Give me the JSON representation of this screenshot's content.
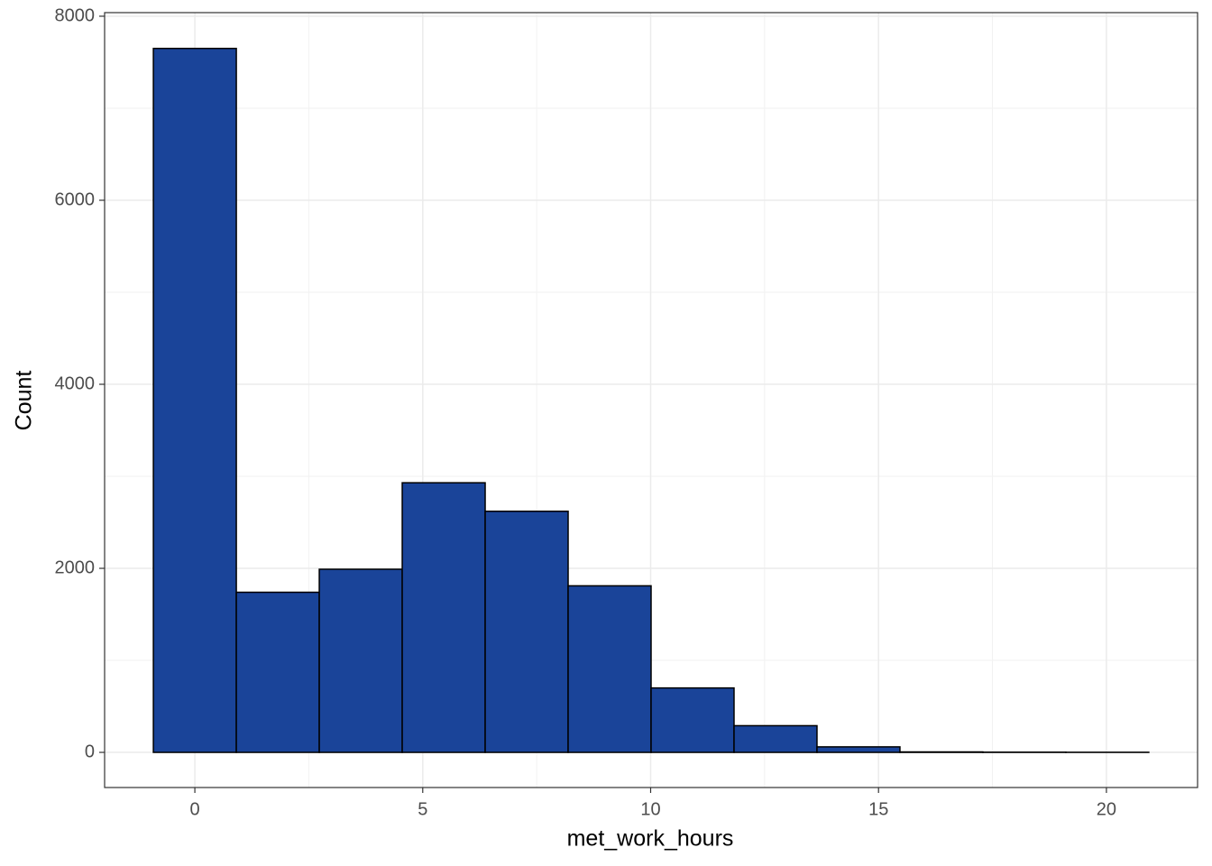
{
  "chart_data": {
    "type": "histogram",
    "x_label": "met_work_hours",
    "y_label": "Count",
    "bins": [
      -0.91,
      0.91,
      2.73,
      4.55,
      6.37,
      8.19,
      10.01,
      11.83,
      13.65,
      15.47,
      17.29,
      19.11,
      20.93
    ],
    "values": [
      7650,
      1740,
      1990,
      2930,
      2620,
      1810,
      700,
      290,
      60,
      5,
      2,
      1
    ],
    "color": "#1a4499",
    "xlim": [
      -1.98,
      22.0
    ],
    "ylim": [
      -382,
      8039
    ],
    "xticks": [
      0,
      5,
      10,
      15,
      20
    ],
    "yticks": [
      0,
      2000,
      4000,
      6000,
      8000
    ],
    "grid": true
  }
}
